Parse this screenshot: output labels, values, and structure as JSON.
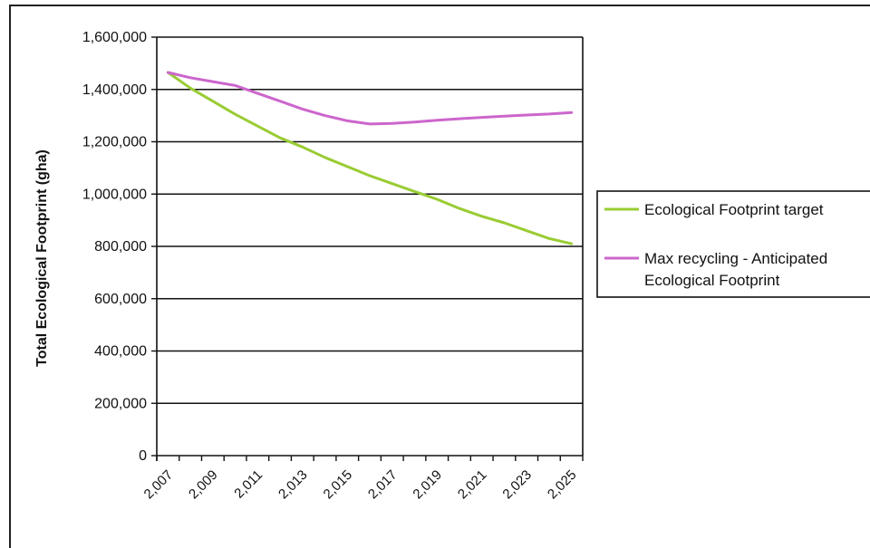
{
  "chart_data": {
    "type": "line",
    "title": "",
    "xlabel": "",
    "ylabel": "Total Ecological Footprint (gha)",
    "x_tick_labels": [
      "2,007",
      "2,009",
      "2,011",
      "2,013",
      "2,015",
      "2,017",
      "2,019",
      "2,021",
      "2,023",
      "2,025"
    ],
    "y_tick_labels": [
      "0",
      "200,000",
      "400,000",
      "600,000",
      "800,000",
      "1,000,000",
      "1,200,000",
      "1,400,000",
      "1,600,000"
    ],
    "xlim": [
      2007,
      2026
    ],
    "ylim": [
      0,
      1600000
    ],
    "grid": "horizontal",
    "legend_position": "right",
    "series": [
      {
        "name": "Ecological Footprint target",
        "color": "#99CC33",
        "x": [
          2007.5,
          2008.5,
          2009.5,
          2010.5,
          2011.5,
          2012.5,
          2013.5,
          2014.5,
          2015.5,
          2016.5,
          2017.5,
          2018.5,
          2019.5,
          2020.5,
          2021.5,
          2022.5,
          2023.5,
          2024.5,
          2025.5
        ],
        "values": [
          1465000,
          1405000,
          1355000,
          1305000,
          1260000,
          1215000,
          1180000,
          1140000,
          1105000,
          1070000,
          1040000,
          1010000,
          980000,
          945000,
          915000,
          890000,
          860000,
          830000,
          810000
        ]
      },
      {
        "name": "Max recycling - Anticipated Ecological Footprint",
        "color": "#CC66CC",
        "x": [
          2007.5,
          2008.5,
          2009.5,
          2010.5,
          2011.5,
          2012.5,
          2013.5,
          2014.5,
          2015.5,
          2016.5,
          2017.5,
          2018.5,
          2019.5,
          2020.5,
          2021.5,
          2022.5,
          2023.5,
          2024.5,
          2025.5
        ],
        "values": [
          1465000,
          1445000,
          1430000,
          1415000,
          1385000,
          1355000,
          1325000,
          1300000,
          1280000,
          1268000,
          1270000,
          1275000,
          1282000,
          1288000,
          1293000,
          1298000,
          1302000,
          1306000,
          1312000
        ]
      }
    ]
  }
}
